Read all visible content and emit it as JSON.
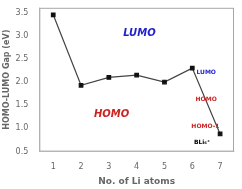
{
  "chart_data": {
    "type": "line",
    "x_label": "No. of Li atoms",
    "y_label": "HOMO-LUMO Gap (eV)",
    "x": [
      1,
      2,
      3,
      4,
      5,
      6,
      7
    ],
    "series": [
      {
        "name": "HOMO-LUMO Gap",
        "color": "#444444",
        "marker_color": "#111111",
        "marker": "square",
        "values": [
          3.45,
          1.93,
          2.1,
          2.15,
          2.0,
          2.3,
          0.88
        ]
      }
    ],
    "xlim": [
      0.5,
      7.5
    ],
    "xticks": [
      1,
      2,
      3,
      4,
      5,
      6,
      7
    ],
    "ylim": [
      0.5,
      3.6
    ],
    "yticks": [
      0.5,
      {
        "value": 1,
        "label": "1.0"
      },
      1.5,
      {
        "value": 2,
        "label": "2.0"
      },
      2.5,
      {
        "value": 3,
        "label": "3.0"
      },
      3.5
    ],
    "grid": false,
    "annotations": [
      {
        "text": "LUMO",
        "x": 4.1,
        "y": 3.05,
        "color": "#2222cc"
      },
      {
        "text": "HOMO",
        "x": 3.1,
        "y": 1.3,
        "color": "#cc2222"
      },
      {
        "text": "LUMO",
        "x": 6.5,
        "y": 2.2,
        "color": "#2222cc"
      },
      {
        "text": "HOMO",
        "x": 6.5,
        "y": 1.62,
        "color": "#cc2222"
      },
      {
        "text": "HOMO-1",
        "x": 6.47,
        "y": 1.04,
        "color": "#cc2222"
      },
      {
        "text": "BLi₆⁺",
        "x": 6.35,
        "y": 0.7,
        "color": "#000000"
      }
    ]
  }
}
